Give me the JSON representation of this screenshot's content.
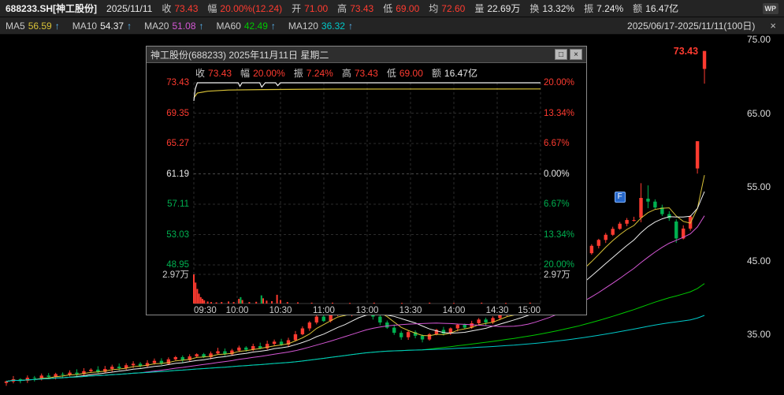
{
  "colors": {
    "red": "#ff3b30",
    "green": "#00b050",
    "yellow": "#d9c237",
    "white_line": "#ededed",
    "magenta": "#d457d4",
    "ma_green": "#00c800",
    "cyan": "#00c8c8"
  },
  "top_bar": {
    "symbol": "688233.SH[神工股份]",
    "date": "2025/11/11",
    "fields": [
      {
        "label": "收",
        "value": "73.43",
        "tone": "red"
      },
      {
        "label": "幅",
        "value": "20.00%(12.24)",
        "tone": "red"
      },
      {
        "label": "开",
        "value": "71.00",
        "tone": "red"
      },
      {
        "label": "高",
        "value": "73.43",
        "tone": "red"
      },
      {
        "label": "低",
        "value": "69.00",
        "tone": "red"
      },
      {
        "label": "均",
        "value": "72.60",
        "tone": "red"
      },
      {
        "label": "量",
        "value": "22.69万",
        "tone": "white"
      },
      {
        "label": "换",
        "value": "13.32%",
        "tone": "white"
      },
      {
        "label": "振",
        "value": "7.24%",
        "tone": "white"
      },
      {
        "label": "额",
        "value": "16.47亿",
        "tone": "white"
      }
    ],
    "wp_badge": "WP"
  },
  "ma_bar": {
    "items": [
      {
        "label": "MA5",
        "value": "56.59",
        "arrow": "↑",
        "color": "#d9c237"
      },
      {
        "label": "MA10",
        "value": "54.37",
        "arrow": "↑",
        "color": "#ededed"
      },
      {
        "label": "MA20",
        "value": "51.08",
        "arrow": "↑",
        "color": "#d457d4"
      },
      {
        "label": "MA60",
        "value": "42.49",
        "arrow": "↑",
        "color": "#00c800"
      },
      {
        "label": "MA120",
        "value": "36.32",
        "arrow": "↑",
        "color": "#00c8c8"
      }
    ],
    "range_label": "2025/06/17-2025/11/11(100日)",
    "close_icon": "×"
  },
  "main_chart": {
    "axis_labels": [
      "75.00",
      "65.00",
      "55.00",
      "45.00",
      "35.00"
    ],
    "axis_values": [
      75,
      65,
      55,
      45,
      35
    ],
    "last_price": "73.43",
    "flag_label": "F"
  },
  "popup": {
    "title": "神工股份(688233) 2025年11月11日 星期二",
    "maximize_icon": "□",
    "close_icon": "×",
    "stats": [
      {
        "label": "收",
        "value": "73.43",
        "tone": "red"
      },
      {
        "label": "幅",
        "value": "20.00%",
        "tone": "red"
      },
      {
        "label": "振",
        "value": "7.24%",
        "tone": "red"
      },
      {
        "label": "高",
        "value": "73.43",
        "tone": "red"
      },
      {
        "label": "低",
        "value": "69.00",
        "tone": "red"
      },
      {
        "label": "额",
        "value": "16.47亿",
        "tone": "white"
      }
    ],
    "left_axis": [
      {
        "text": "73.43",
        "tone": "red"
      },
      {
        "text": "69.35",
        "tone": "red"
      },
      {
        "text": "65.27",
        "tone": "red"
      },
      {
        "text": "61.19",
        "tone": "white"
      },
      {
        "text": "57.11",
        "tone": "green"
      },
      {
        "text": "53.03",
        "tone": "green"
      },
      {
        "text": "48.95",
        "tone": "green"
      }
    ],
    "right_axis": [
      {
        "text": "20.00%",
        "tone": "red"
      },
      {
        "text": "13.34%",
        "tone": "red"
      },
      {
        "text": "6.67%",
        "tone": "red"
      },
      {
        "text": "0.00%",
        "tone": "white"
      },
      {
        "text": "6.67%",
        "tone": "green"
      },
      {
        "text": "13.34%",
        "tone": "green"
      },
      {
        "text": "20.00%",
        "tone": "green"
      }
    ],
    "vol_label_left": "2.97万",
    "vol_label_right": "2.97万",
    "time_labels": [
      {
        "text": "09:30",
        "t": 0
      },
      {
        "text": "10:00",
        "t": 0.125
      },
      {
        "text": "10:30",
        "t": 0.25
      },
      {
        "text": "11:00",
        "t": 0.375
      },
      {
        "text": "13:00",
        "t": 0.5
      },
      {
        "text": "13:30",
        "t": 0.625
      },
      {
        "text": "14:00",
        "t": 0.75
      },
      {
        "text": "14:30",
        "t": 0.875
      },
      {
        "text": "15:00",
        "t": 1
      }
    ]
  },
  "chart_data": [
    {
      "type": "candlestick",
      "title": "688233.SH 神工股份 日K",
      "x_range": "2025/06/17-2025/11/11",
      "days": 100,
      "ylim": [
        27.5,
        76.5
      ],
      "y_axis_ticks": [
        75,
        65,
        55,
        45,
        35
      ],
      "last_close": 73.43,
      "ma_shown": {
        "MA5": 56.59,
        "MA10": 54.37,
        "MA20": 51.08,
        "MA60": 42.49,
        "MA120": 36.32
      },
      "closes": [
        28.6,
        28.9,
        28.7,
        29.1,
        29.0,
        29.4,
        29.2,
        29.6,
        29.5,
        29.8,
        29.6,
        30.0,
        30.2,
        29.9,
        30.3,
        30.6,
        30.4,
        30.8,
        31.0,
        30.7,
        31.1,
        31.4,
        31.0,
        31.6,
        31.9,
        31.5,
        32.0,
        32.3,
        31.9,
        32.4,
        32.7,
        32.3,
        32.8,
        33.2,
        32.9,
        33.4,
        33.1,
        33.7,
        34.0,
        33.6,
        34.2,
        35.0,
        35.8,
        36.6,
        37.4,
        36.8,
        37.6,
        38.3,
        37.7,
        38.5,
        38.9,
        38.2,
        37.4,
        36.6,
        35.9,
        35.2,
        34.6,
        35.3,
        34.8,
        34.3,
        35.0,
        35.6,
        35.1,
        35.8,
        36.3,
        35.9,
        36.5,
        37.0,
        36.6,
        37.2,
        37.8,
        38.4,
        38.0,
        38.8,
        39.5,
        40.2,
        41.0,
        41.8,
        42.5,
        43.0,
        43.5,
        44.8,
        46.0,
        47.0,
        47.8,
        48.5,
        49.3,
        50.0,
        50.5,
        50.5,
        53.5,
        53.0,
        52.2,
        51.3,
        50.75,
        48.0,
        49.34,
        50.99,
        61.19,
        73.43
      ],
      "ohlc_overrides": {
        "90": [
          50.8,
          55.5,
          50.2,
          53.5
        ],
        "91": [
          53.4,
          55.2,
          52.1,
          53.0
        ],
        "95": [
          50.3,
          50.6,
          47.4,
          48.0
        ],
        "98": [
          57.5,
          61.19,
          56.8,
          61.19
        ],
        "99": [
          71.0,
          73.43,
          69.0,
          73.43
        ]
      },
      "flag_day": 87,
      "flag_price": 53.6
    },
    {
      "type": "line",
      "title": "神工股份(688233) 分时 2025年11月11日",
      "open": 71.0,
      "high": 73.43,
      "low": 69.0,
      "close": 73.43,
      "prev_close": 61.19,
      "limit_up": 73.43,
      "limit_down": 48.95,
      "vol_axis_max": "2.97万",
      "price_points": [
        [
          0,
          71.0
        ],
        [
          0.004,
          72.6
        ],
        [
          0.01,
          73.43
        ],
        [
          0.128,
          73.43
        ],
        [
          0.133,
          72.95
        ],
        [
          0.139,
          73.43
        ],
        [
          0.19,
          73.43
        ],
        [
          0.196,
          72.85
        ],
        [
          0.206,
          73.43
        ],
        [
          0.236,
          73.43
        ],
        [
          0.242,
          73.05
        ],
        [
          0.25,
          73.43
        ],
        [
          1,
          73.43
        ]
      ],
      "avg_points": [
        [
          0,
          71.4
        ],
        [
          0.01,
          72.05
        ],
        [
          0.04,
          72.3
        ],
        [
          0.1,
          72.45
        ],
        [
          0.2,
          72.52
        ],
        [
          0.4,
          72.58
        ],
        [
          1,
          72.6
        ]
      ],
      "volume_bars": [
        [
          0,
          1.0,
          "r"
        ],
        [
          0.005,
          0.72,
          "r"
        ],
        [
          0.01,
          0.5,
          "r"
        ],
        [
          0.015,
          0.34,
          "r"
        ],
        [
          0.02,
          0.22,
          "r"
        ],
        [
          0.025,
          0.16,
          "r"
        ],
        [
          0.03,
          0.11,
          "r"
        ],
        [
          0.04,
          0.07,
          "r"
        ],
        [
          0.05,
          0.05,
          "r"
        ],
        [
          0.065,
          0.04,
          "r"
        ],
        [
          0.08,
          0.05,
          "r"
        ],
        [
          0.1,
          0.07,
          "r"
        ],
        [
          0.115,
          0.05,
          "r"
        ],
        [
          0.13,
          0.16,
          "r"
        ],
        [
          0.135,
          0.22,
          "g"
        ],
        [
          0.14,
          0.12,
          "r"
        ],
        [
          0.16,
          0.05,
          "r"
        ],
        [
          0.18,
          0.06,
          "r"
        ],
        [
          0.195,
          0.28,
          "g"
        ],
        [
          0.2,
          0.18,
          "r"
        ],
        [
          0.21,
          0.1,
          "r"
        ],
        [
          0.225,
          0.08,
          "r"
        ],
        [
          0.24,
          0.3,
          "r"
        ],
        [
          0.25,
          0.12,
          "r"
        ],
        [
          0.27,
          0.05,
          "r"
        ],
        [
          0.3,
          0.04,
          "r"
        ],
        [
          0.34,
          0.03,
          "r"
        ],
        [
          0.4,
          0.03,
          "r"
        ],
        [
          0.45,
          0.02,
          "r"
        ],
        [
          0.52,
          0.03,
          "r"
        ],
        [
          0.6,
          0.02,
          "r"
        ],
        [
          0.68,
          0.03,
          "r"
        ],
        [
          0.75,
          0.02,
          "r"
        ],
        [
          0.83,
          0.03,
          "r"
        ],
        [
          0.9,
          0.02,
          "r"
        ],
        [
          0.97,
          0.03,
          "r"
        ]
      ]
    }
  ]
}
